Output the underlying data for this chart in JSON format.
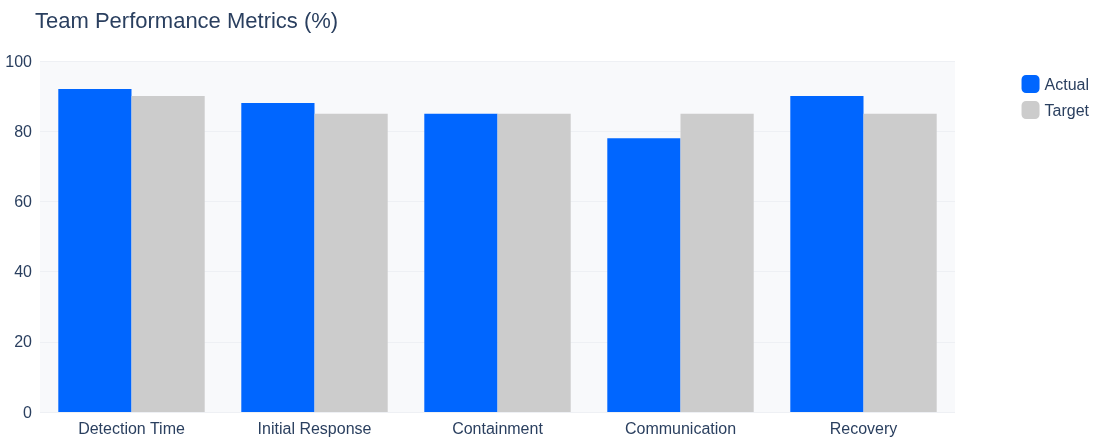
{
  "chart_data": {
    "type": "bar",
    "title": "Team Performance Metrics (%)",
    "categories": [
      "Detection Time",
      "Initial Response",
      "Containment",
      "Communication",
      "Recovery"
    ],
    "series": [
      {
        "name": "Actual",
        "color": "#0066ff",
        "values": [
          92,
          88,
          85,
          78,
          90
        ]
      },
      {
        "name": "Target",
        "color": "#cccccc",
        "values": [
          90,
          85,
          85,
          85,
          85
        ]
      }
    ],
    "ylim": [
      0,
      100
    ],
    "yticks": [
      0,
      20,
      40,
      60,
      80,
      100
    ],
    "grid": "y",
    "legend": "top right"
  }
}
